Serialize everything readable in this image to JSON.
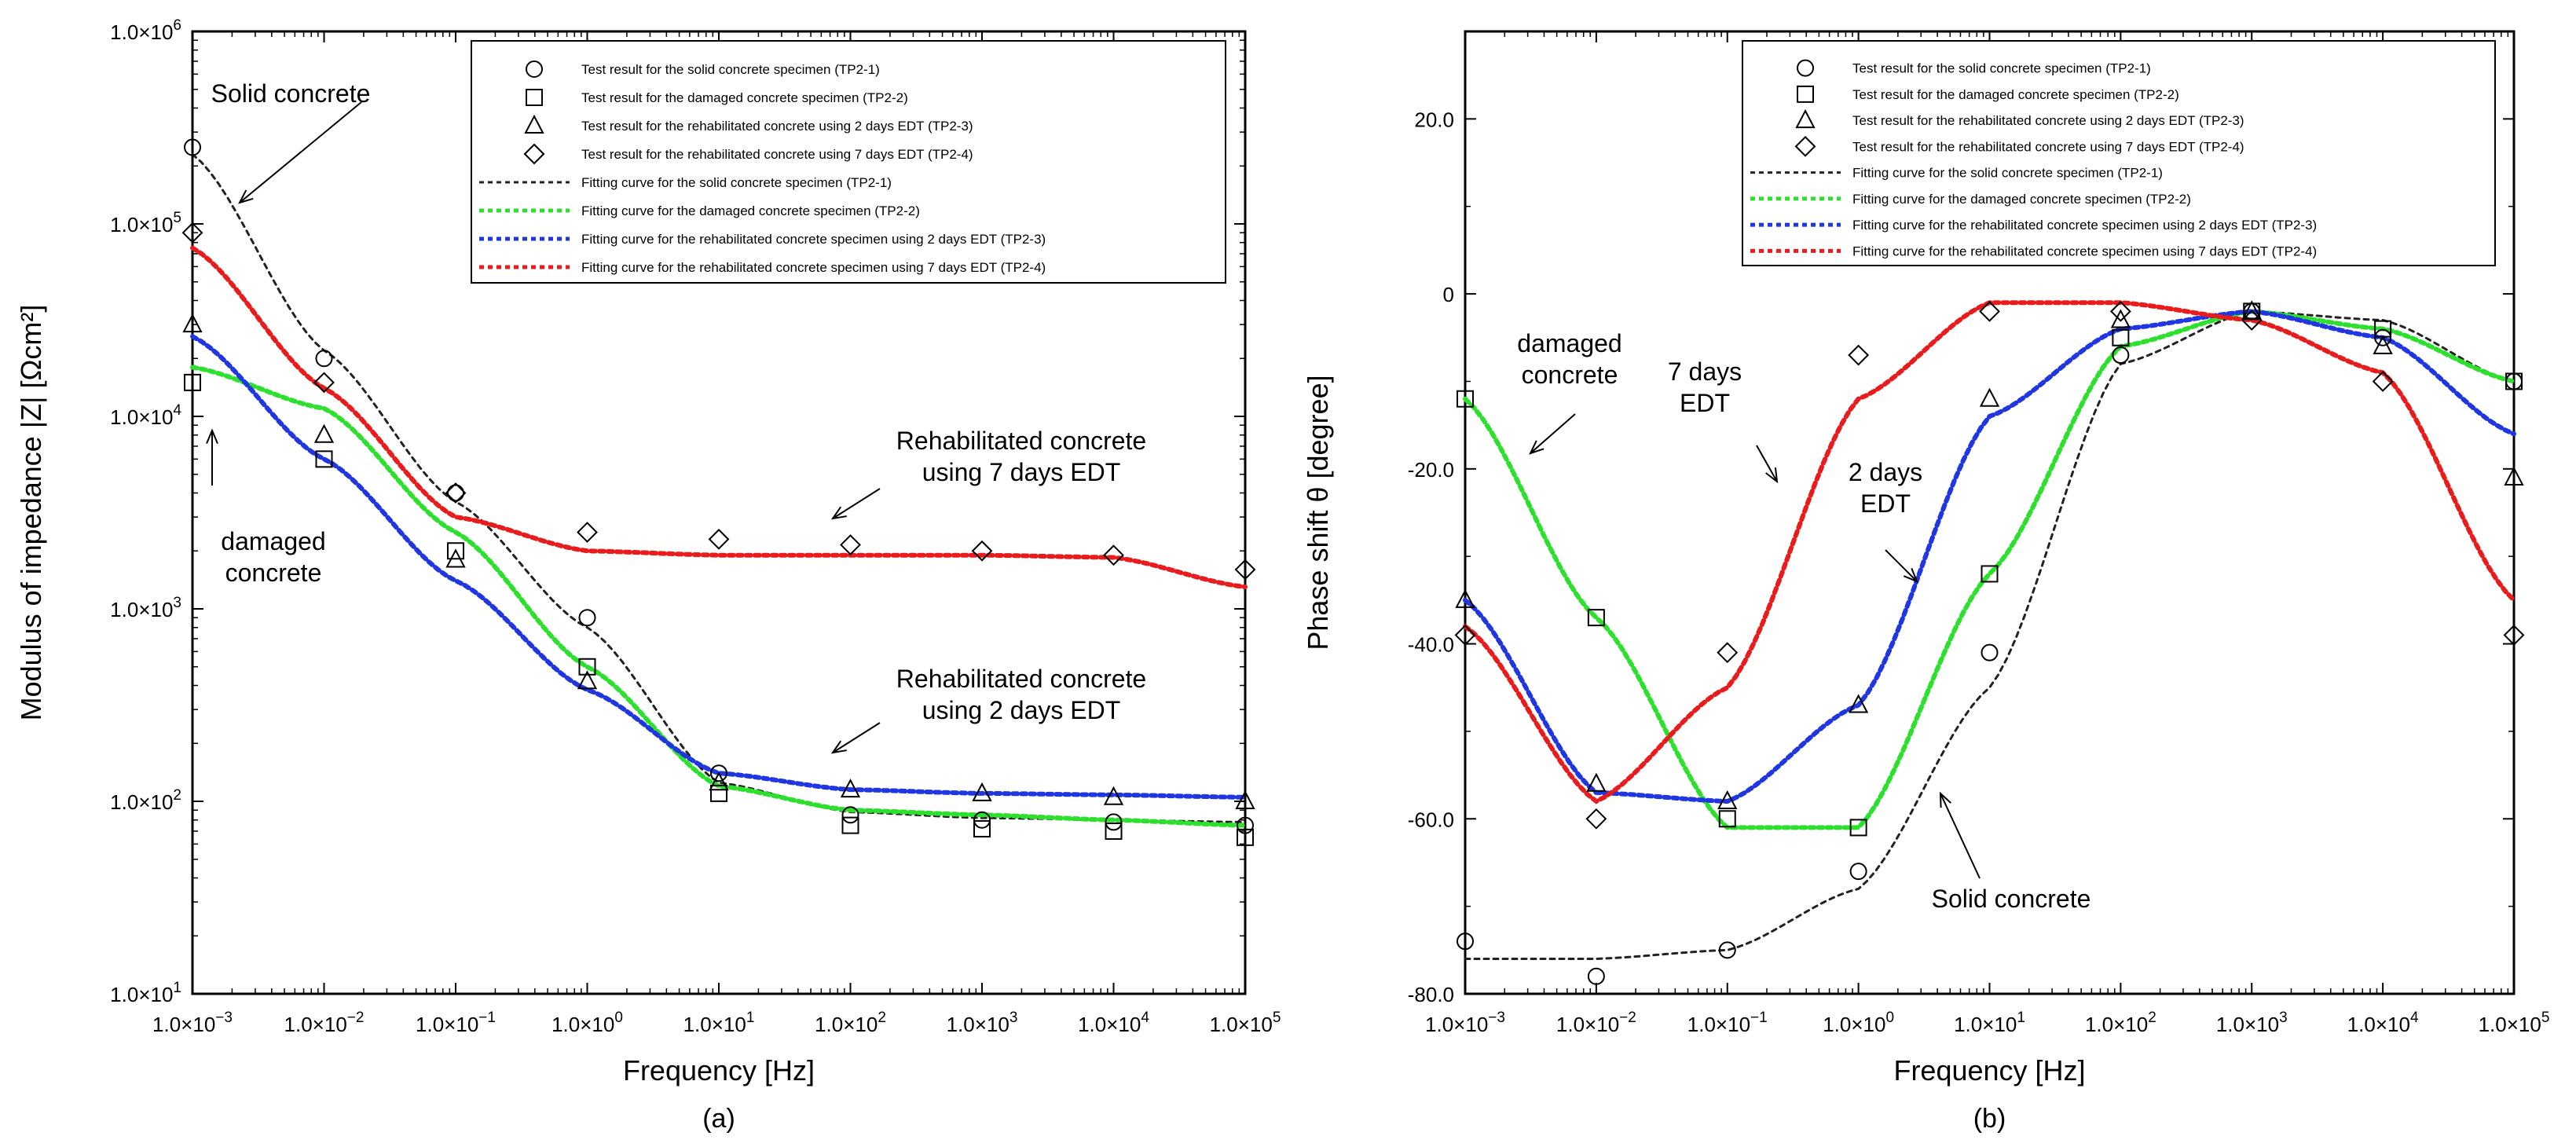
{
  "chart_data": [
    {
      "type": "scatter",
      "panel_label": "(a)",
      "xlabel": "Frequency [Hz]",
      "ylabel": "Modulus of impedance |Z| [Ωcm²]",
      "x_scale": "log",
      "y_scale": "log",
      "xlim": [
        0.001,
        100000
      ],
      "ylim": [
        10,
        1000000
      ],
      "x_ticks": [
        {
          "v": 0.001,
          "m": "1.0×10",
          "e": "−3"
        },
        {
          "v": 0.01,
          "m": "1.0×10",
          "e": "−2"
        },
        {
          "v": 0.1,
          "m": "1.0×10",
          "e": "−1"
        },
        {
          "v": 1,
          "m": "1.0×10",
          "e": "0"
        },
        {
          "v": 10,
          "m": "1.0×10",
          "e": "1"
        },
        {
          "v": 100,
          "m": "1.0×10",
          "e": "2"
        },
        {
          "v": 1000,
          "m": "1.0×10",
          "e": "3"
        },
        {
          "v": 10000,
          "m": "1.0×10",
          "e": "4"
        },
        {
          "v": 100000,
          "m": "1.0×10",
          "e": "5"
        }
      ],
      "y_ticks": [
        {
          "v": 10,
          "m": "1.0×10",
          "e": "1"
        },
        {
          "v": 100,
          "m": "1.0×10",
          "e": "2"
        },
        {
          "v": 1000,
          "m": "1.0×10",
          "e": "3"
        },
        {
          "v": 10000,
          "m": "1.0×10",
          "e": "4"
        },
        {
          "v": 100000,
          "m": "1.0×10",
          "e": "5"
        },
        {
          "v": 1000000,
          "m": "1.0×10",
          "e": "6"
        }
      ],
      "test_series": [
        {
          "name": "Test result for the solid concrete specimen (TP2-1)",
          "marker": "circle",
          "x": [
            0.001,
            0.01,
            0.1,
            1,
            10,
            100,
            1000,
            10000,
            100000
          ],
          "y": [
            250000,
            20000,
            4000,
            900,
            140,
            85,
            80,
            78,
            75
          ]
        },
        {
          "name": "Test result for the damaged concrete specimen (TP2-2)",
          "marker": "square",
          "x": [
            0.001,
            0.01,
            0.1,
            1,
            10,
            100,
            1000,
            10000,
            100000
          ],
          "y": [
            15000,
            6000,
            2000,
            500,
            110,
            75,
            72,
            70,
            65
          ]
        },
        {
          "name": "Test result for the rehabilitated concrete using 2 days EDT (TP2-3)",
          "marker": "triangle",
          "x": [
            0.001,
            0.01,
            0.1,
            1,
            10,
            100,
            1000,
            10000,
            100000
          ],
          "y": [
            30000,
            8000,
            1800,
            420,
            125,
            115,
            110,
            105,
            100
          ]
        },
        {
          "name": "Test result for the rehabilitated concrete using 7 days EDT (TP2-4)",
          "marker": "diamond",
          "x": [
            0.001,
            0.01,
            0.1,
            1,
            10,
            100,
            1000,
            10000,
            100000
          ],
          "y": [
            90000,
            15000,
            4000,
            2500,
            2300,
            2150,
            2000,
            1900,
            1600
          ]
        }
      ],
      "fit_series": [
        {
          "name": "Fitting curve for the solid concrete specimen (TP2-1)",
          "color": "#222222",
          "x": [
            0.001,
            0.01,
            0.1,
            1,
            10,
            100,
            1000,
            10000,
            100000
          ],
          "y": [
            230000,
            22000,
            3600,
            800,
            125,
            88,
            82,
            80,
            78
          ]
        },
        {
          "name": "Fitting curve for the damaged concrete specimen (TP2-2)",
          "color": "#2ee02e",
          "x": [
            0.001,
            0.01,
            0.1,
            1,
            10,
            100,
            1000,
            10000,
            100000
          ],
          "y": [
            18000,
            11000,
            2500,
            500,
            120,
            90,
            85,
            80,
            75
          ]
        },
        {
          "name": "Fitting curve for the rehabilitated concrete specimen using 2 days EDT (TP2-3)",
          "color": "#1f36e0",
          "x": [
            0.001,
            0.01,
            0.1,
            1,
            10,
            100,
            1000,
            10000,
            100000
          ],
          "y": [
            26000,
            6000,
            1400,
            380,
            140,
            115,
            110,
            108,
            105
          ]
        },
        {
          "name": "Fitting curve for the rehabilitated concrete specimen using 7 days EDT (TP2-4)",
          "color": "#e81c1c",
          "x": [
            0.001,
            0.01,
            0.1,
            1,
            10,
            100,
            1000,
            10000,
            100000
          ],
          "y": [
            75000,
            14000,
            3000,
            2000,
            1900,
            1900,
            1900,
            1850,
            1300
          ]
        }
      ],
      "annotations": [
        {
          "lines": [
            "Solid concrete"
          ]
        },
        {
          "lines": [
            "damaged",
            "concrete"
          ]
        },
        {
          "lines": [
            "Rehabilitated concrete",
            "using 7 days EDT"
          ]
        },
        {
          "lines": [
            "Rehabilitated concrete",
            "using 2 days EDT"
          ]
        }
      ]
    },
    {
      "type": "scatter",
      "panel_label": "(b)",
      "xlabel": "Frequency [Hz]",
      "ylabel": "Phase shift θ [degree]",
      "x_scale": "log",
      "y_scale": "linear",
      "xlim": [
        0.001,
        100000
      ],
      "ylim": [
        -80,
        30
      ],
      "x_ticks": [
        {
          "v": 0.001,
          "m": "1.0×10",
          "e": "−3"
        },
        {
          "v": 0.01,
          "m": "1.0×10",
          "e": "−2"
        },
        {
          "v": 0.1,
          "m": "1.0×10",
          "e": "−1"
        },
        {
          "v": 1,
          "m": "1.0×10",
          "e": "0"
        },
        {
          "v": 10,
          "m": "1.0×10",
          "e": "1"
        },
        {
          "v": 100,
          "m": "1.0×10",
          "e": "2"
        },
        {
          "v": 1000,
          "m": "1.0×10",
          "e": "3"
        },
        {
          "v": 10000,
          "m": "1.0×10",
          "e": "4"
        },
        {
          "v": 100000,
          "m": "1.0×10",
          "e": "5"
        }
      ],
      "y_ticks": [
        {
          "v": -80,
          "label": "-80.0"
        },
        {
          "v": -60,
          "label": "-60.0"
        },
        {
          "v": -40,
          "label": "-40.0"
        },
        {
          "v": -20,
          "label": "-20.0"
        },
        {
          "v": 0,
          "label": "0"
        },
        {
          "v": 20,
          "label": "20.0"
        }
      ],
      "test_series": [
        {
          "name": "Test result for the solid concrete specimen (TP2-1)",
          "marker": "circle",
          "x": [
            0.001,
            0.01,
            0.1,
            1,
            10,
            100,
            1000,
            10000,
            100000
          ],
          "y": [
            -74,
            -78,
            -75,
            -66,
            -41,
            -7,
            -2,
            -5,
            -10
          ]
        },
        {
          "name": "Test result for the damaged concrete specimen (TP2-2)",
          "marker": "square",
          "x": [
            0.001,
            0.01,
            0.1,
            1,
            10,
            100,
            1000,
            10000,
            100000
          ],
          "y": [
            -12,
            -37,
            -60,
            -61,
            -32,
            -5,
            -2,
            -4,
            -10
          ]
        },
        {
          "name": "Test result for the rehabilitated concrete using 2 days EDT (TP2-3)",
          "marker": "triangle",
          "x": [
            0.001,
            0.01,
            0.1,
            1,
            10,
            100,
            1000,
            10000,
            100000
          ],
          "y": [
            -35,
            -56,
            -58,
            -47,
            -12,
            -3,
            -2,
            -6,
            -21
          ]
        },
        {
          "name": "Test result for the rehabilitated concrete using 7 days EDT (TP2-4)",
          "marker": "diamond",
          "x": [
            0.001,
            0.01,
            0.1,
            1,
            10,
            100,
            1000,
            10000,
            100000
          ],
          "y": [
            -39,
            -60,
            -41,
            -7,
            -2,
            -2,
            -3,
            -10,
            -39
          ]
        }
      ],
      "fit_series": [
        {
          "name": "Fitting curve for the solid concrete specimen (TP2-1)",
          "color": "#222222",
          "x": [
            0.001,
            0.01,
            0.1,
            1,
            10,
            100,
            1000,
            10000,
            100000
          ],
          "y": [
            -76,
            -76,
            -75,
            -68,
            -45,
            -8,
            -2,
            -3,
            -10
          ]
        },
        {
          "name": "Fitting curve for the damaged concrete specimen (TP2-2)",
          "color": "#2ee02e",
          "x": [
            0.001,
            0.01,
            0.1,
            1,
            10,
            100,
            1000,
            10000,
            100000
          ],
          "y": [
            -12,
            -37,
            -61,
            -61,
            -32,
            -6,
            -2,
            -4,
            -10
          ]
        },
        {
          "name": "Fitting curve for the rehabilitated concrete specimen using 2 days EDT (TP2-3)",
          "color": "#1f36e0",
          "x": [
            0.001,
            0.01,
            0.1,
            1,
            10,
            100,
            1000,
            10000,
            100000
          ],
          "y": [
            -35,
            -57,
            -58,
            -47,
            -14,
            -4,
            -2,
            -5,
            -16
          ]
        },
        {
          "name": "Fitting curve for the rehabilitated concrete specimen using 7 days EDT (TP2-4)",
          "color": "#e81c1c",
          "x": [
            0.001,
            0.01,
            0.1,
            1,
            10,
            100,
            1000,
            10000,
            100000
          ],
          "y": [
            -38,
            -58,
            -45,
            -12,
            -1,
            -1,
            -3,
            -9,
            -35
          ]
        }
      ],
      "annotations": [
        {
          "lines": [
            "damaged",
            "concrete"
          ]
        },
        {
          "lines": [
            "7 days",
            "EDT"
          ]
        },
        {
          "lines": [
            "2 days",
            "EDT"
          ]
        },
        {
          "lines": [
            "Solid concrete"
          ]
        }
      ]
    }
  ]
}
